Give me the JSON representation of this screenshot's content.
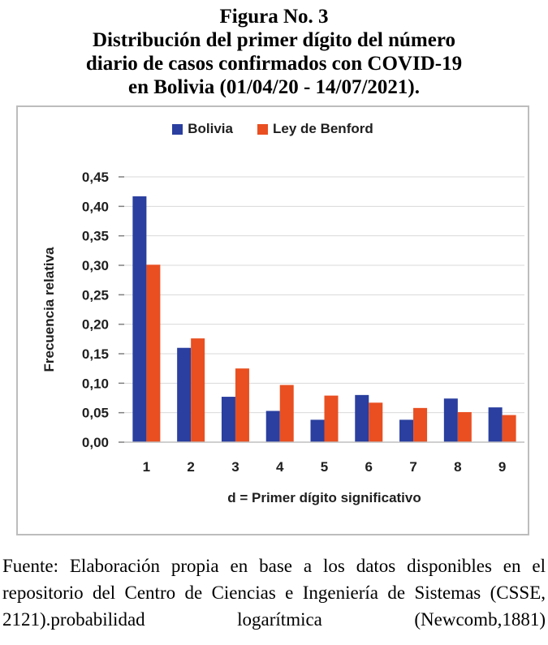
{
  "figure": {
    "title_lines": [
      "Figura No. 3",
      "Distribución del primer dígito del número",
      "diario de casos confirmados con COVID-19",
      "en Bolivia (01/04/20 - 14/07/2021)."
    ],
    "source_text": "Fuente: Elaboración propia en base a los datos disponibles en el repositorio del Centro de Ciencias e Ingeniería de Sistemas (CSSE, 2121).probabilidad logarítmica (Newcomb,1881)"
  },
  "chart_data": {
    "type": "bar",
    "categories": [
      "1",
      "2",
      "3",
      "4",
      "5",
      "6",
      "7",
      "8",
      "9"
    ],
    "series": [
      {
        "name": "Bolivia",
        "color": "#2a3f9f",
        "values": [
          0.417,
          0.16,
          0.077,
          0.053,
          0.038,
          0.08,
          0.038,
          0.074,
          0.059
        ]
      },
      {
        "name": "Ley de Benford",
        "color": "#e94f21",
        "values": [
          0.301,
          0.176,
          0.125,
          0.097,
          0.079,
          0.067,
          0.058,
          0.051,
          0.046
        ]
      }
    ],
    "title": "",
    "xlabel": "d = Primer dígito significativo",
    "ylabel": "Frecuencia relativa",
    "ylim": [
      0,
      0.45
    ],
    "ytick_step": 0.05,
    "ytick_labels": [
      "0,00",
      "0,05",
      "0,10",
      "0,15",
      "0,20",
      "0,25",
      "0,30",
      "0,35",
      "0,40",
      "0,45"
    ],
    "grid": true,
    "legend_position": "top-center",
    "colors": {
      "gridline": "#d9d9d9",
      "axis_line": "#bfbfbf",
      "tick_mark": "#7f7f7f",
      "tick_label": "#1f1f1f",
      "frame_border": "#bdbdbd"
    }
  }
}
